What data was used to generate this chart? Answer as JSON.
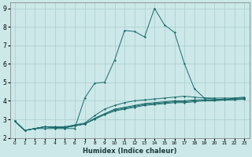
{
  "xlabel": "Humidex (Indice chaleur)",
  "xlim": [
    -0.5,
    23.5
  ],
  "ylim": [
    2,
    9.3
  ],
  "xticks": [
    0,
    1,
    2,
    3,
    4,
    5,
    6,
    7,
    8,
    9,
    10,
    11,
    12,
    13,
    14,
    15,
    16,
    17,
    18,
    19,
    20,
    21,
    22,
    23
  ],
  "yticks": [
    2,
    3,
    4,
    5,
    6,
    7,
    8,
    9
  ],
  "bg_color": "#cce8e8",
  "line_color": "#1a6b6b",
  "grid_color": "#aacece",
  "series": [
    [
      2.9,
      2.4,
      2.5,
      2.5,
      2.5,
      2.5,
      2.5,
      4.15,
      4.95,
      5.0,
      6.2,
      7.8,
      7.75,
      7.45,
      9.0,
      8.1,
      7.7,
      6.0,
      4.65,
      4.15,
      4.1,
      4.05,
      4.15,
      4.15
    ],
    [
      2.9,
      2.4,
      2.5,
      2.6,
      2.6,
      2.6,
      2.7,
      2.8,
      3.2,
      3.55,
      3.75,
      3.9,
      4.0,
      4.05,
      4.1,
      4.15,
      4.2,
      4.25,
      4.2,
      4.15,
      4.15,
      4.15,
      4.15,
      4.2
    ],
    [
      2.9,
      2.4,
      2.5,
      2.6,
      2.55,
      2.55,
      2.65,
      2.75,
      3.05,
      3.3,
      3.55,
      3.65,
      3.75,
      3.85,
      3.9,
      3.95,
      4.0,
      4.0,
      4.05,
      4.05,
      4.05,
      4.1,
      4.1,
      4.1
    ],
    [
      2.9,
      2.4,
      2.5,
      2.6,
      2.55,
      2.55,
      2.65,
      2.75,
      3.05,
      3.3,
      3.5,
      3.6,
      3.7,
      3.8,
      3.85,
      3.9,
      3.95,
      3.95,
      4.0,
      4.05,
      4.05,
      4.05,
      4.1,
      4.1
    ],
    [
      2.9,
      2.4,
      2.5,
      2.6,
      2.55,
      2.55,
      2.65,
      2.75,
      3.0,
      3.25,
      3.45,
      3.55,
      3.65,
      3.75,
      3.8,
      3.85,
      3.9,
      3.9,
      3.95,
      4.0,
      4.0,
      4.05,
      4.05,
      4.1
    ]
  ],
  "x_values": [
    0,
    1,
    2,
    3,
    4,
    5,
    6,
    7,
    8,
    9,
    10,
    11,
    12,
    13,
    14,
    15,
    16,
    17,
    18,
    19,
    20,
    21,
    22,
    23
  ]
}
